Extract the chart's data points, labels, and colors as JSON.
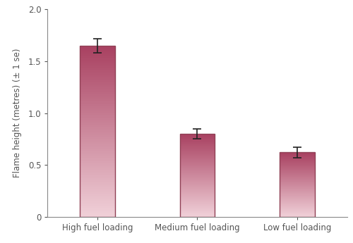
{
  "categories": [
    "High fuel loading",
    "Medium fuel loading",
    "Low fuel loading"
  ],
  "values": [
    1.65,
    0.8,
    0.62
  ],
  "errors": [
    0.07,
    0.05,
    0.05
  ],
  "bar_color_top": "#a84060",
  "bar_color_bottom": "#f0d0d8",
  "bar_edge_color": "#904055",
  "ylabel": "Flame height (metres) (± 1 se)",
  "ylim": [
    0,
    2.0
  ],
  "yticks": [
    0,
    0.5,
    1.0,
    1.5,
    2.0
  ],
  "ytick_labels": [
    "0",
    "0.5",
    "1.0",
    "1.5",
    "2.0"
  ],
  "background_color": "#ffffff",
  "bar_width": 0.35,
  "x_positions": [
    0.5,
    1.5,
    2.5
  ],
  "xlim": [
    0,
    3.0
  ],
  "errorbar_color": "#222222",
  "errorbar_linewidth": 1.2,
  "errorbar_capsize": 4,
  "errorbar_capthick": 1.2,
  "spine_color": "#888888",
  "tick_color": "#666666",
  "label_fontsize": 8.5,
  "tick_fontsize": 8.5,
  "ylabel_fontsize": 8.5,
  "bar_edge_linewidth": 1.0
}
